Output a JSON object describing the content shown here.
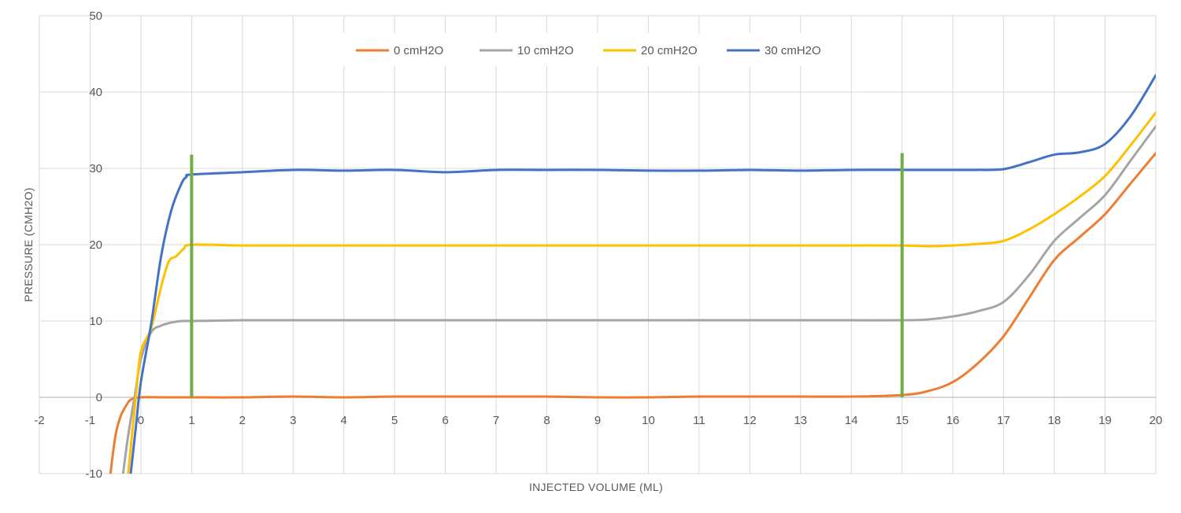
{
  "chart_data": {
    "type": "line",
    "title": "",
    "xlabel": "INJECTED VOLUME (ML)",
    "ylabel": "PRESSURE (CMH2O)",
    "xlim": [
      -2,
      20
    ],
    "ylim": [
      -10,
      50
    ],
    "xticks": [
      -2,
      -1,
      0,
      1,
      2,
      3,
      4,
      5,
      6,
      7,
      8,
      9,
      10,
      11,
      12,
      13,
      14,
      15,
      16,
      17,
      18,
      19,
      20
    ],
    "yticks": [
      -10,
      0,
      10,
      20,
      30,
      40,
      50
    ],
    "grid": true,
    "legend_position": "top-center",
    "series": [
      {
        "name": "0 cmH2O",
        "color": "#ED7D31",
        "x": [
          -0.6,
          -0.5,
          -0.4,
          -0.3,
          -0.2,
          0,
          0.5,
          1,
          2,
          3,
          4,
          5,
          6,
          7,
          8,
          9,
          10,
          11,
          12,
          13,
          14,
          15,
          15.5,
          16,
          16.5,
          17,
          17.5,
          18,
          18.5,
          19,
          19.5,
          20
        ],
        "y": [
          -10,
          -5,
          -2.5,
          -1.2,
          -0.3,
          0,
          0,
          0,
          0,
          0.1,
          0,
          0.1,
          0.1,
          0.1,
          0.1,
          0,
          0,
          0.1,
          0.1,
          0.1,
          0.1,
          0.3,
          0.8,
          2,
          4.5,
          8,
          13,
          18,
          21,
          24,
          28,
          32
        ]
      },
      {
        "name": "10 cmH2O",
        "color": "#A5A5A5",
        "x": [
          -0.35,
          -0.25,
          -0.1,
          0,
          0.2,
          0.4,
          0.6,
          0.8,
          1,
          2,
          3,
          4,
          5,
          6,
          7,
          8,
          9,
          10,
          11,
          12,
          13,
          14,
          15,
          15.5,
          16,
          16.5,
          17,
          17.5,
          18,
          18.5,
          19,
          19.5,
          20
        ],
        "y": [
          -10,
          -5,
          1,
          5,
          8.5,
          9.4,
          9.8,
          10,
          10,
          10.1,
          10.1,
          10.1,
          10.1,
          10.1,
          10.1,
          10.1,
          10.1,
          10.1,
          10.1,
          10.1,
          10.1,
          10.1,
          10.1,
          10.2,
          10.6,
          11.3,
          12.5,
          16,
          20.5,
          23.5,
          26.5,
          31,
          35.5
        ]
      },
      {
        "name": "20 cmH2O",
        "color": "#FFC000",
        "x": [
          -0.25,
          -0.1,
          0,
          0.2,
          0.4,
          0.55,
          0.7,
          0.85,
          1,
          2,
          3,
          4,
          5,
          6,
          7,
          8,
          9,
          10,
          11,
          12,
          13,
          14,
          15,
          15.5,
          16,
          16.5,
          17,
          17.5,
          18,
          18.5,
          19,
          19.5,
          20
        ],
        "y": [
          -10,
          0,
          6,
          9,
          14.5,
          17.8,
          18.5,
          19.5,
          20,
          19.9,
          19.9,
          19.9,
          19.9,
          19.9,
          19.9,
          19.9,
          19.9,
          19.9,
          19.9,
          19.9,
          19.9,
          19.9,
          19.9,
          19.8,
          19.9,
          20.1,
          20.5,
          22,
          24,
          26.3,
          29,
          33,
          37.3
        ]
      },
      {
        "name": "30 cmH2O",
        "color": "#4472C4",
        "x": [
          -0.2,
          -0.1,
          0,
          0.2,
          0.4,
          0.6,
          0.8,
          0.9,
          1,
          2,
          3,
          4,
          5,
          6,
          7,
          8,
          9,
          10,
          11,
          12,
          13,
          14,
          15,
          15.5,
          16,
          16.5,
          17,
          17.5,
          18,
          18.5,
          19,
          19.5,
          20
        ],
        "y": [
          -10,
          -4,
          2,
          9.5,
          18.5,
          24.5,
          28,
          28.9,
          29.2,
          29.5,
          29.8,
          29.7,
          29.8,
          29.5,
          29.8,
          29.8,
          29.8,
          29.7,
          29.7,
          29.8,
          29.7,
          29.8,
          29.8,
          29.8,
          29.8,
          29.8,
          29.9,
          30.8,
          31.8,
          32.1,
          33.2,
          36.8,
          42.2
        ]
      }
    ],
    "markers": [
      {
        "x": 1,
        "y_range": [
          0,
          31.8
        ],
        "color": "#70AD47"
      },
      {
        "x": 15,
        "y_range": [
          0,
          32
        ],
        "color": "#70AD47"
      }
    ]
  }
}
